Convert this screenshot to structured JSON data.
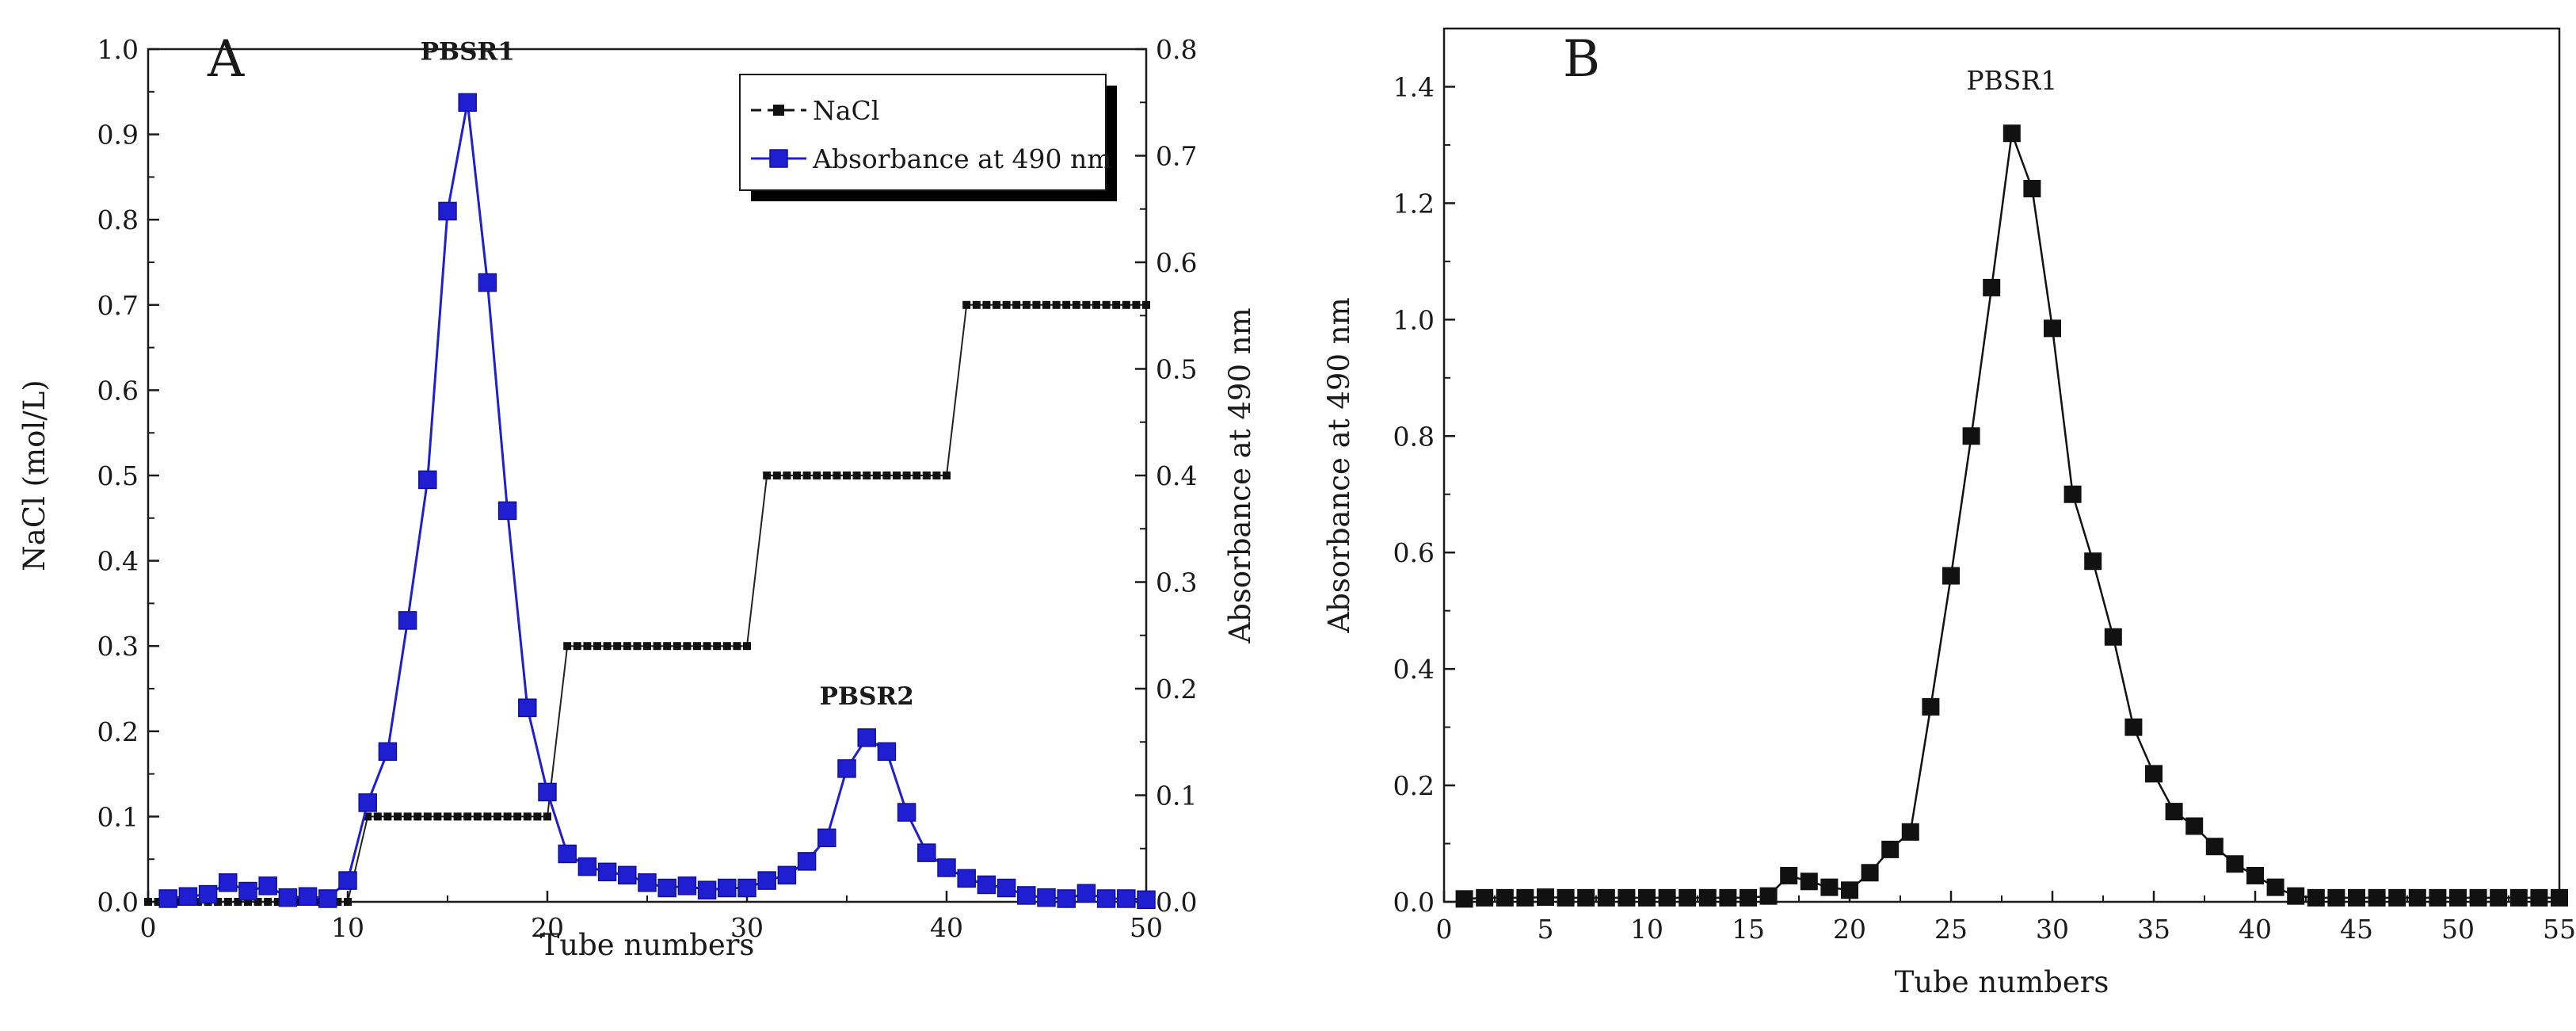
{
  "chart_data": [
    {
      "type": "line",
      "panel": "A",
      "title": "",
      "xlabel": "Tube numbers",
      "ylabel": "NaCl (mol/L)",
      "y2label": "Absorbance at 490 nm",
      "xlim": [
        0,
        50
      ],
      "ylim": [
        0.0,
        1.0
      ],
      "y2lim": [
        0.0,
        0.8
      ],
      "xticks": [
        "0",
        "10",
        "20",
        "30",
        "40",
        "50"
      ],
      "yticks": [
        "0.0",
        "0.1",
        "0.2",
        "0.3",
        "0.4",
        "0.5",
        "0.6",
        "0.7",
        "0.8",
        "0.9",
        "1.0"
      ],
      "y2ticks": [
        "0.0",
        "0.1",
        "0.2",
        "0.3",
        "0.4",
        "0.5",
        "0.6",
        "0.7",
        "0.8"
      ],
      "grid": false,
      "legend": {
        "position": "top-right",
        "entries": [
          "NaCl",
          "Absorbance at 490 nm"
        ]
      },
      "annotations": [
        {
          "text": "PBSR1",
          "x": 16,
          "axis": "y2",
          "y": 0.79
        },
        {
          "text": "PBSR2",
          "x": 36,
          "axis": "y2",
          "y": 0.185
        }
      ],
      "series": [
        {
          "name": "NaCl",
          "axis": "y",
          "color": "#111111",
          "step_segments": [
            {
              "x_start": 0,
              "x_end": 10,
              "y": 0.0
            },
            {
              "x_start": 11,
              "x_end": 20,
              "y": 0.1
            },
            {
              "x_start": 21,
              "x_end": 30,
              "y": 0.3
            },
            {
              "x_start": 31,
              "x_end": 40,
              "y": 0.5
            },
            {
              "x_start": 41,
              "x_end": 50,
              "y": 0.7
            }
          ]
        },
        {
          "name": "Absorbance at 490 nm",
          "axis": "y2",
          "color": "#1f1fd1",
          "x": [
            1,
            2,
            3,
            4,
            5,
            6,
            7,
            8,
            9,
            10,
            11,
            12,
            13,
            14,
            15,
            16,
            17,
            18,
            19,
            20,
            21,
            22,
            23,
            24,
            25,
            26,
            27,
            28,
            29,
            30,
            31,
            32,
            33,
            34,
            35,
            36,
            37,
            38,
            39,
            40,
            41,
            42,
            43,
            44,
            45,
            46,
            47,
            48,
            49,
            50
          ],
          "y": [
            0.003,
            0.005,
            0.007,
            0.018,
            0.01,
            0.015,
            0.004,
            0.005,
            0.003,
            0.02,
            0.093,
            0.141,
            0.264,
            0.396,
            0.648,
            0.75,
            0.581,
            0.367,
            0.182,
            0.103,
            0.045,
            0.033,
            0.028,
            0.025,
            0.018,
            0.013,
            0.015,
            0.011,
            0.013,
            0.013,
            0.02,
            0.025,
            0.038,
            0.06,
            0.125,
            0.154,
            0.141,
            0.084,
            0.046,
            0.032,
            0.022,
            0.016,
            0.013,
            0.006,
            0.004,
            0.003,
            0.008,
            0.003,
            0.003,
            0.002
          ]
        }
      ]
    },
    {
      "type": "line",
      "panel": "B",
      "title": "",
      "xlabel": "Tube numbers",
      "ylabel": "Absorbance at 490 nm",
      "xlim": [
        0,
        55
      ],
      "ylim": [
        0.0,
        1.5
      ],
      "xticks": [
        "0",
        "5",
        "10",
        "15",
        "20",
        "25",
        "30",
        "35",
        "40",
        "45",
        "50",
        "55"
      ],
      "yticks": [
        "0.0",
        "0.2",
        "0.4",
        "0.6",
        "0.8",
        "1.0",
        "1.2",
        "1.4"
      ],
      "grid": false,
      "annotations": [
        {
          "text": "PBSR1",
          "x": 28,
          "y": 1.395
        }
      ],
      "series": [
        {
          "name": "Absorbance at 490 nm",
          "color": "#111111",
          "x": [
            1,
            2,
            3,
            4,
            5,
            6,
            7,
            8,
            9,
            10,
            11,
            12,
            13,
            14,
            15,
            16,
            17,
            18,
            19,
            20,
            21,
            22,
            23,
            24,
            25,
            26,
            27,
            28,
            29,
            30,
            31,
            32,
            33,
            34,
            35,
            36,
            37,
            38,
            39,
            40,
            41,
            42,
            43,
            44,
            45,
            46,
            47,
            48,
            49,
            50,
            51,
            52,
            53,
            54,
            55
          ],
          "y": [
            0.005,
            0.007,
            0.007,
            0.007,
            0.008,
            0.007,
            0.007,
            0.007,
            0.007,
            0.007,
            0.007,
            0.007,
            0.007,
            0.007,
            0.007,
            0.01,
            0.045,
            0.035,
            0.025,
            0.02,
            0.05,
            0.09,
            0.12,
            0.335,
            0.56,
            0.8,
            1.055,
            1.32,
            1.225,
            0.985,
            0.7,
            0.585,
            0.455,
            0.3,
            0.22,
            0.155,
            0.13,
            0.095,
            0.065,
            0.045,
            0.025,
            0.01,
            0.007,
            0.007,
            0.007,
            0.007,
            0.007,
            0.007,
            0.007,
            0.007,
            0.007,
            0.007,
            0.007,
            0.007,
            0.007
          ]
        }
      ]
    }
  ]
}
